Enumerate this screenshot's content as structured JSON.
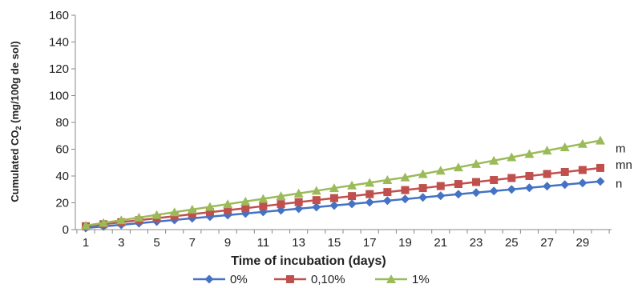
{
  "chart_data": {
    "type": "line",
    "xlabel": "Time of incubation (days)",
    "ylabel_main": "Cumulated CO",
    "ylabel_sub": "2",
    "ylabel_suffix": " (mg/100g de sol)",
    "ylim": [
      0,
      160
    ],
    "yticks": [
      0,
      20,
      40,
      60,
      80,
      100,
      120,
      140,
      160
    ],
    "xlim": [
      1,
      30
    ],
    "xticks": [
      1,
      3,
      5,
      7,
      9,
      11,
      13,
      15,
      17,
      19,
      21,
      23,
      25,
      27,
      29
    ],
    "grid": false,
    "legend_position": "bottom",
    "x": [
      1,
      2,
      3,
      4,
      5,
      6,
      7,
      8,
      9,
      10,
      11,
      12,
      13,
      14,
      15,
      16,
      17,
      18,
      19,
      20,
      21,
      22,
      23,
      24,
      25,
      26,
      27,
      28,
      29,
      30
    ],
    "series": [
      {
        "name": "0%",
        "color": "#4472c4",
        "marker": "diamond",
        "values": [
          1.2,
          2.4,
          3.6,
          4.8,
          6.0,
          7.2,
          8.4,
          9.6,
          10.8,
          12.0,
          13.2,
          14.4,
          15.6,
          16.8,
          18.0,
          19.2,
          20.4,
          21.6,
          22.8,
          24.0,
          25.2,
          26.4,
          27.6,
          28.8,
          30.0,
          31.2,
          32.4,
          33.6,
          34.8,
          36.0
        ],
        "end_label": "n"
      },
      {
        "name": "0,10%",
        "color": "#c0504d",
        "marker": "square",
        "values": [
          2.5,
          4.0,
          5.5,
          7.0,
          8.5,
          10.0,
          11.5,
          13.0,
          14.5,
          16.0,
          17.5,
          19.0,
          20.5,
          22.0,
          23.5,
          25.0,
          26.5,
          28.0,
          29.5,
          31.0,
          32.5,
          34.0,
          35.5,
          37.0,
          38.5,
          40.0,
          41.5,
          43.0,
          44.5,
          46.0
        ],
        "end_label": "mn"
      },
      {
        "name": "1%",
        "color": "#9bbb59",
        "marker": "triangle",
        "values": [
          3.0,
          5.0,
          7.0,
          9.0,
          11.0,
          13.0,
          15.0,
          17.0,
          19.0,
          21.0,
          23.0,
          25.0,
          27.0,
          29.0,
          31.0,
          33.0,
          35.0,
          37.0,
          39.0,
          41.5,
          44.0,
          46.5,
          49.0,
          51.5,
          54.0,
          56.5,
          59.0,
          61.5,
          64.0,
          66.5
        ],
        "end_label": "m"
      }
    ]
  }
}
